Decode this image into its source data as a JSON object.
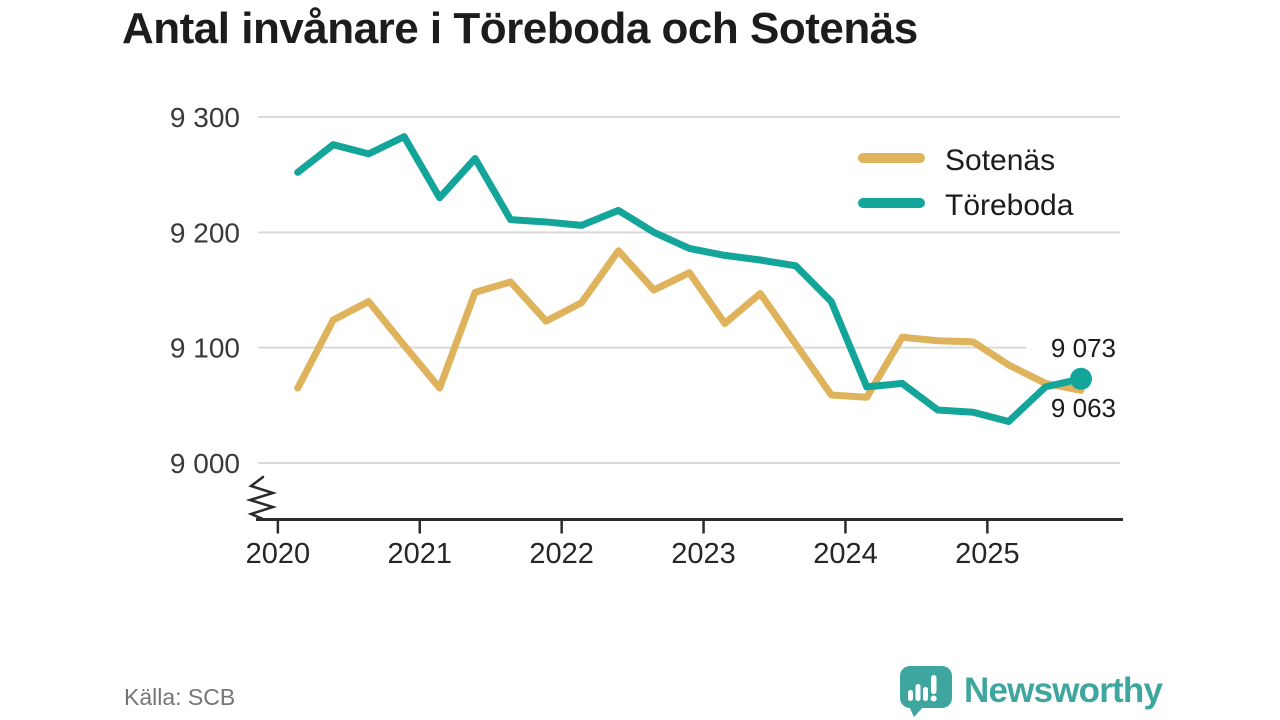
{
  "page": {
    "title": "Antal invånare i Töreboda och Sotenäs",
    "source": "Källa: SCB",
    "brand": {
      "name": "Newsworthy",
      "icon": "newsworthy-speech-bubble-bar-chart-icon",
      "color": "#3ea69e"
    }
  },
  "chart_data": {
    "type": "line",
    "title": "Antal invånare i Töreboda och Sotenäs",
    "xlabel": "",
    "ylabel": "",
    "xlim": [
      2019.86,
      2025.97
    ],
    "ylim": [
      9000,
      9300
    ],
    "y_axis_break": true,
    "grid": "horizontal-only",
    "gridline_color": "#d9d9d9",
    "axis_color": "#2b2b2b",
    "legend_position": "top-right-inside",
    "x_ticks": [
      2020,
      2021,
      2022,
      2023,
      2024,
      2025
    ],
    "x_tick_labels": [
      "2020",
      "2021",
      "2022",
      "2023",
      "2024",
      "2025"
    ],
    "y_ticks": [
      9300,
      9200,
      9100,
      9000
    ],
    "y_tick_labels": [
      "9 300",
      "9 200",
      "9 100",
      "9 000"
    ],
    "series": [
      {
        "id": "sotenas",
        "name": "Sotenäs",
        "color": "#dfb35c",
        "end_dot": false,
        "x": [
          2020.14,
          2020.39,
          2020.64,
          2020.89,
          2021.14,
          2021.39,
          2021.64,
          2021.89,
          2022.14,
          2022.4,
          2022.65,
          2022.9,
          2023.15,
          2023.4,
          2023.65,
          2023.9,
          2024.15,
          2024.4,
          2024.65,
          2024.9,
          2025.15,
          2025.41,
          2025.66
        ],
        "values": [
          9065,
          9124,
          9140,
          9102,
          9065,
          9148,
          9157,
          9123,
          9139,
          9184,
          9150,
          9165,
          9121,
          9147,
          9103,
          9059,
          9057,
          9109,
          9106,
          9105,
          9085,
          9069,
          9063
        ]
      },
      {
        "id": "toreboda",
        "name": "Töreboda",
        "color": "#14a59a",
        "end_dot": true,
        "x": [
          2020.14,
          2020.39,
          2020.64,
          2020.89,
          2021.14,
          2021.39,
          2021.64,
          2021.89,
          2022.14,
          2022.4,
          2022.65,
          2022.9,
          2023.15,
          2023.4,
          2023.65,
          2023.9,
          2024.15,
          2024.4,
          2024.65,
          2024.9,
          2025.15,
          2025.41,
          2025.66
        ],
        "values": [
          9252,
          9276,
          9268,
          9283,
          9230,
          9264,
          9211,
          9209,
          9206,
          9219,
          9200,
          9186,
          9180,
          9176,
          9171,
          9140,
          9066,
          9069,
          9046,
          9044,
          9036,
          9066,
          9073
        ]
      }
    ],
    "end_labels": [
      {
        "series": "Töreboda",
        "text": "9 073",
        "value": 9073
      },
      {
        "series": "Sotenäs",
        "text": "9 063",
        "value": 9063
      }
    ]
  }
}
